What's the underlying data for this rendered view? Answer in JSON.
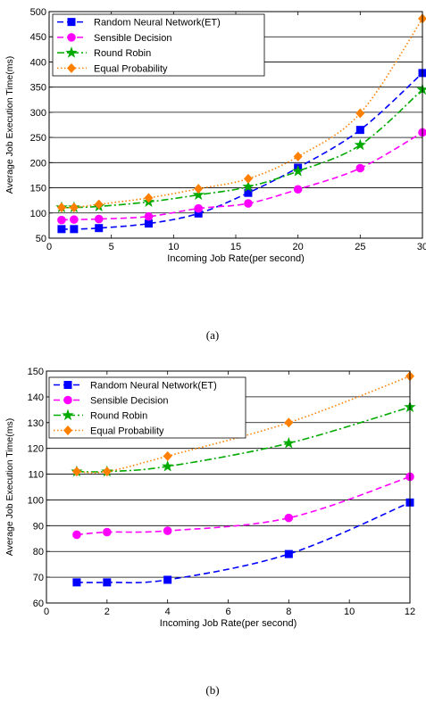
{
  "chart_data": [
    {
      "type": "line",
      "panel_label": "(a)",
      "xlabel": "Incoming Job Rate(per second)",
      "ylabel": "Average Job Execution Time(ms)",
      "xlim": [
        0,
        30
      ],
      "ylim": [
        50,
        500
      ],
      "xticks": [
        "0",
        "5",
        "10",
        "15",
        "20",
        "25",
        "30"
      ],
      "yticks": [
        "50",
        "100",
        "150",
        "200",
        "250",
        "300",
        "350",
        "400",
        "450",
        "500"
      ],
      "grid": "horizontal",
      "legend_position": "top-left",
      "series": [
        {
          "name": "Random Neural Network(ET)",
          "color": "#0000ff",
          "marker": "square",
          "dash": "dashed",
          "x": [
            1,
            2,
            4,
            8,
            12,
            16,
            20,
            25,
            30
          ],
          "y": [
            68,
            68,
            70,
            79,
            99,
            140,
            190,
            265,
            378
          ]
        },
        {
          "name": "Sensible Decision",
          "color": "#ff00ff",
          "marker": "circle",
          "dash": "dashed",
          "x": [
            1,
            2,
            4,
            8,
            12,
            16,
            20,
            25,
            30
          ],
          "y": [
            86,
            87,
            88,
            93,
            109,
            119,
            147,
            189,
            260
          ]
        },
        {
          "name": "Round Robin",
          "color": "#00aa00",
          "marker": "star",
          "dash": "dashdot",
          "x": [
            1,
            2,
            4,
            8,
            12,
            16,
            20,
            25,
            30
          ],
          "y": [
            111,
            111,
            113,
            122,
            136,
            152,
            183,
            235,
            345
          ]
        },
        {
          "name": "Equal Probability",
          "color": "#ff8000",
          "marker": "diamond",
          "dash": "dotted",
          "x": [
            1,
            2,
            4,
            8,
            12,
            16,
            20,
            25,
            30
          ],
          "y": [
            111,
            111,
            117,
            130,
            148,
            168,
            212,
            298,
            486
          ]
        }
      ]
    },
    {
      "type": "line",
      "panel_label": "(b)",
      "xlabel": "Incoming Job Rate(per second)",
      "ylabel": "Average Job Execution Time(ms)",
      "xlim": [
        0,
        12
      ],
      "ylim": [
        60,
        150
      ],
      "xticks": [
        "0",
        "2",
        "4",
        "6",
        "8",
        "10",
        "12"
      ],
      "yticks": [
        "60",
        "70",
        "80",
        "90",
        "100",
        "110",
        "120",
        "130",
        "140",
        "150"
      ],
      "grid": "horizontal",
      "legend_position": "top-left",
      "series": [
        {
          "name": "Random Neural Network(ET)",
          "color": "#0000ff",
          "marker": "square",
          "dash": "dashed",
          "x": [
            1,
            2,
            4,
            8,
            12
          ],
          "y": [
            68,
            68,
            69,
            79,
            99
          ]
        },
        {
          "name": "Sensible Decision",
          "color": "#ff00ff",
          "marker": "circle",
          "dash": "dashed",
          "x": [
            1,
            2,
            4,
            8,
            12
          ],
          "y": [
            86.5,
            87.5,
            88,
            93,
            109
          ]
        },
        {
          "name": "Round Robin",
          "color": "#00aa00",
          "marker": "star",
          "dash": "dashdot",
          "x": [
            1,
            2,
            4,
            8,
            12
          ],
          "y": [
            111,
            111,
            113,
            122,
            136
          ]
        },
        {
          "name": "Equal Probability",
          "color": "#ff8000",
          "marker": "diamond",
          "dash": "dotted",
          "x": [
            1,
            2,
            4,
            8,
            12
          ],
          "y": [
            111,
            111,
            117,
            130,
            148
          ]
        }
      ]
    }
  ]
}
